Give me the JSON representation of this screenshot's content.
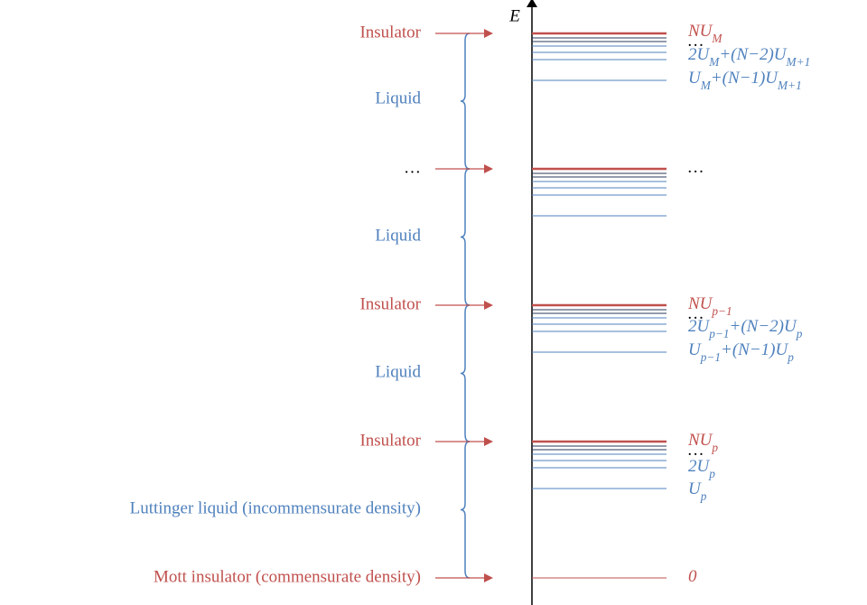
{
  "axis_label": "E",
  "left_labels": [
    {
      "text": "Insulator",
      "color": "#c0504d"
    },
    {
      "text": "Liquid",
      "color": "#4f81bd"
    },
    {
      "text": "…",
      "color": "#000000"
    },
    {
      "text": "Liquid",
      "color": "#4f81bd"
    },
    {
      "text": "Insulator",
      "color": "#c0504d"
    },
    {
      "text": "Liquid",
      "color": "#4f81bd"
    },
    {
      "text": "Insulator",
      "color": "#c0504d"
    },
    {
      "text": "Luttinger liquid (incommensurate density)",
      "color": "#4f81bd"
    },
    {
      "text": "Mott insulator (commensurate density)",
      "color": "#c0504d"
    }
  ],
  "right_labels": [
    {
      "color": "#c0504d",
      "runs": [
        {
          "text": "NU"
        },
        {
          "sub": "M"
        }
      ]
    },
    {
      "color": "#000000",
      "runs": [
        {
          "text": "…"
        }
      ]
    },
    {
      "color": "#4f81bd",
      "runs": [
        {
          "text": "2U"
        },
        {
          "sub": "M"
        },
        {
          "text": "+(N−2)U"
        },
        {
          "sub": "M+1"
        }
      ]
    },
    {
      "color": "#4f81bd",
      "runs": [
        {
          "text": "U"
        },
        {
          "sub": "M"
        },
        {
          "text": "+(N−1)U"
        },
        {
          "sub": "M+1"
        }
      ]
    },
    {
      "color": "#000000",
      "runs": [
        {
          "text": "…"
        }
      ]
    },
    {
      "color": "#c0504d",
      "runs": [
        {
          "text": "NU"
        },
        {
          "sub": "p−1"
        }
      ]
    },
    {
      "color": "#000000",
      "runs": [
        {
          "text": "…"
        }
      ]
    },
    {
      "color": "#4f81bd",
      "runs": [
        {
          "text": "2U"
        },
        {
          "sub": "p−1"
        },
        {
          "text": "+(N−2)U"
        },
        {
          "sub": "p"
        }
      ]
    },
    {
      "color": "#4f81bd",
      "runs": [
        {
          "text": "U"
        },
        {
          "sub": "p−1"
        },
        {
          "text": "+(N−1)U"
        },
        {
          "sub": "p"
        }
      ]
    },
    {
      "color": "#c0504d",
      "runs": [
        {
          "text": "NU"
        },
        {
          "sub": "p"
        }
      ]
    },
    {
      "color": "#000000",
      "runs": [
        {
          "text": "…"
        }
      ]
    },
    {
      "color": "#4f81bd",
      "runs": [
        {
          "text": "2U"
        },
        {
          "sub": "p"
        }
      ]
    },
    {
      "color": "#4f81bd",
      "runs": [
        {
          "text": "U"
        },
        {
          "sub": "p"
        }
      ]
    },
    {
      "color": "#c0504d",
      "runs": [
        {
          "text": "0"
        }
      ]
    }
  ]
}
